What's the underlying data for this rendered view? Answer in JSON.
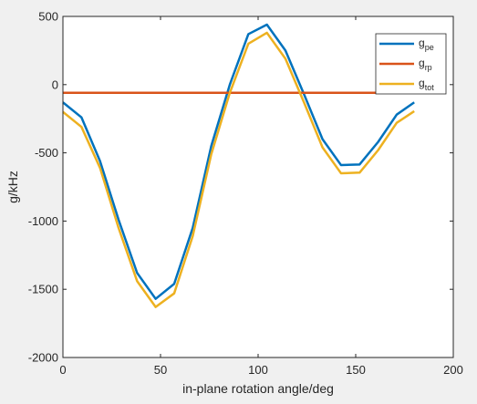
{
  "chart_data": {
    "type": "line",
    "xlabel": "in-plane rotation angle/deg",
    "ylabel": "g/kHz",
    "xlim": [
      0,
      200
    ],
    "ylim": [
      -2000,
      500
    ],
    "xticks": [
      0,
      50,
      100,
      150,
      200
    ],
    "yticks": [
      -2000,
      -1500,
      -1000,
      -500,
      0,
      500
    ],
    "xtick_labels": [
      "0",
      "50",
      "100",
      "150",
      "200"
    ],
    "ytick_labels": [
      "-2000",
      "-1500",
      "-1000",
      "-500",
      "0",
      "500"
    ],
    "grid": false,
    "legend_position": "top-right",
    "x": [
      0,
      9.5,
      19,
      28.5,
      38,
      47.5,
      57,
      66.5,
      76,
      85.5,
      95,
      104.5,
      114,
      123.5,
      133,
      142.5,
      152,
      161.5,
      171,
      180
    ],
    "series": [
      {
        "name": "g",
        "name_sub": "pe",
        "color": "#0072BD",
        "values": [
          -130,
          -240,
          -560,
          -990,
          -1380,
          -1570,
          -1460,
          -1050,
          -450,
          0,
          370,
          440,
          250,
          -70,
          -400,
          -590,
          -585,
          -420,
          -220,
          -130
        ]
      },
      {
        "name": "g",
        "name_sub": "rp",
        "color": "#D95319",
        "values": [
          -60,
          -60,
          -60,
          -60,
          -60,
          -60,
          -60,
          -60,
          -60,
          -60,
          -60,
          -60,
          -60,
          -60,
          -60,
          -60,
          -60,
          -60,
          -60,
          -60
        ]
      },
      {
        "name": "g",
        "name_sub": "tot",
        "color": "#EDB120",
        "values": [
          -200,
          -310,
          -610,
          -1050,
          -1440,
          -1630,
          -1530,
          -1110,
          -510,
          -60,
          300,
          380,
          190,
          -130,
          -460,
          -650,
          -645,
          -480,
          -280,
          -195
        ]
      }
    ]
  }
}
